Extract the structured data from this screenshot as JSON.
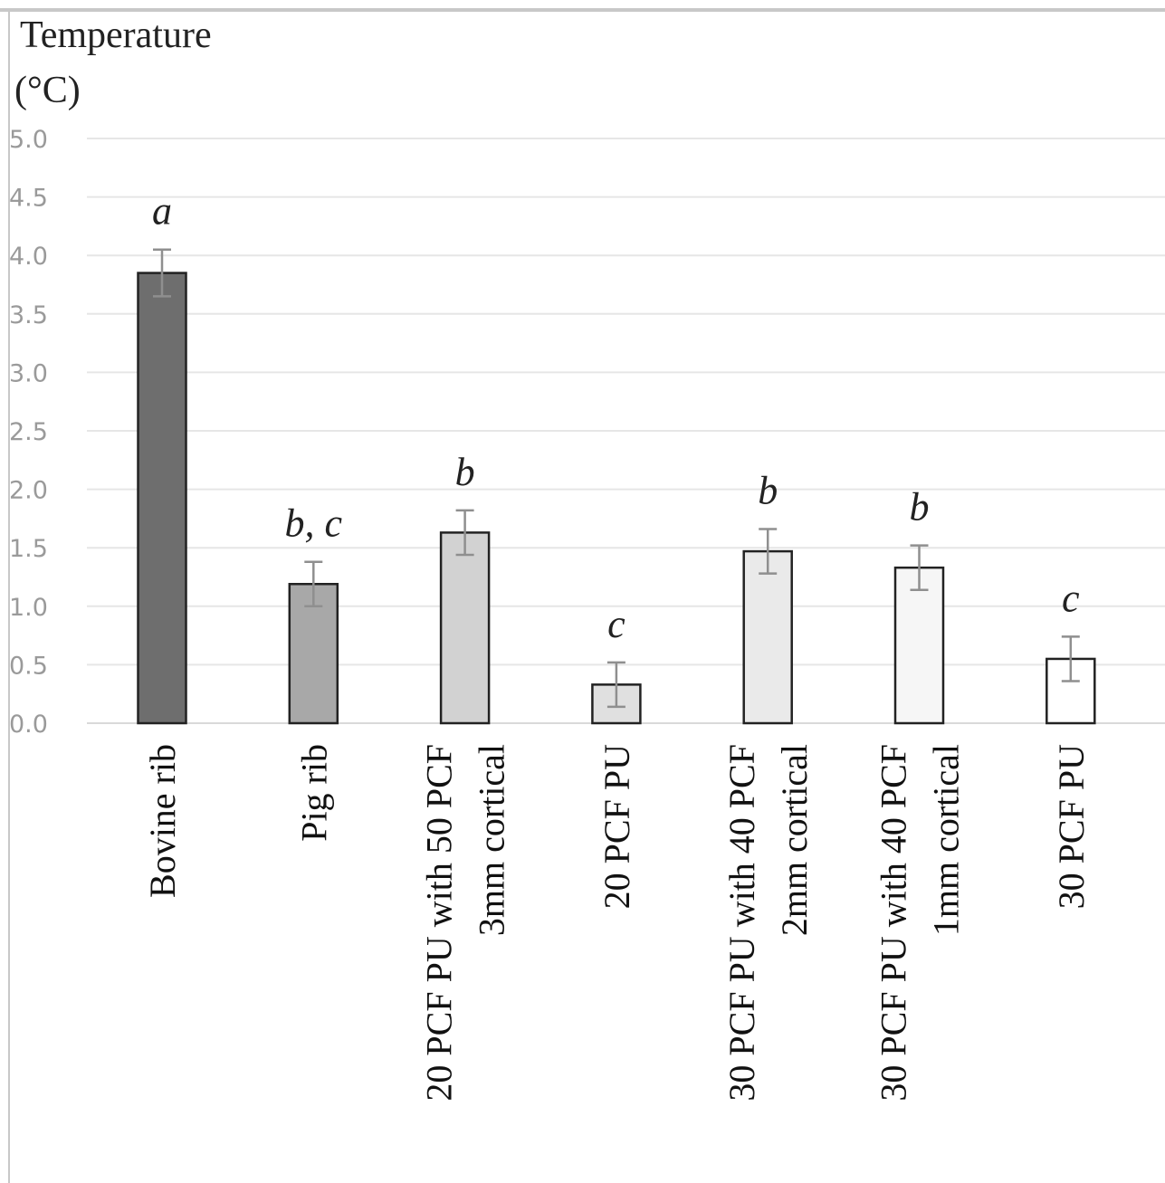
{
  "chart_data": {
    "type": "bar",
    "ylabel_lines": [
      "Temperature",
      "(°C)"
    ],
    "ylim": [
      0,
      5
    ],
    "yticks": [
      "0.0",
      "0.5",
      "1.0",
      "1.5",
      "2.0",
      "2.5",
      "3.0",
      "3.5",
      "4.0",
      "4.5",
      "5.0"
    ],
    "grid": true,
    "categories": [
      [
        "Bovine rib"
      ],
      [
        "Pig rib"
      ],
      [
        "20 PCF PU with 50 PCF",
        "3mm cortical"
      ],
      [
        "20 PCF PU"
      ],
      [
        "30 PCF PU with 40 PCF",
        "2mm cortical"
      ],
      [
        "30 PCF PU with 40 PCF",
        "1mm cortical"
      ],
      [
        "30 PCF PU"
      ]
    ],
    "values": [
      3.85,
      1.19,
      1.63,
      0.33,
      1.47,
      1.33,
      0.55
    ],
    "errors": [
      0.2,
      0.19,
      0.19,
      0.19,
      0.19,
      0.19,
      0.19
    ],
    "significance": [
      "a",
      "b, c",
      "b",
      "c",
      "b",
      "b",
      "c"
    ],
    "colors": [
      "#6e6e6e",
      "#a8a8a8",
      "#d2d2d2",
      "#e0e0e0",
      "#eaeaea",
      "#f6f6f6",
      "#ffffff"
    ]
  }
}
